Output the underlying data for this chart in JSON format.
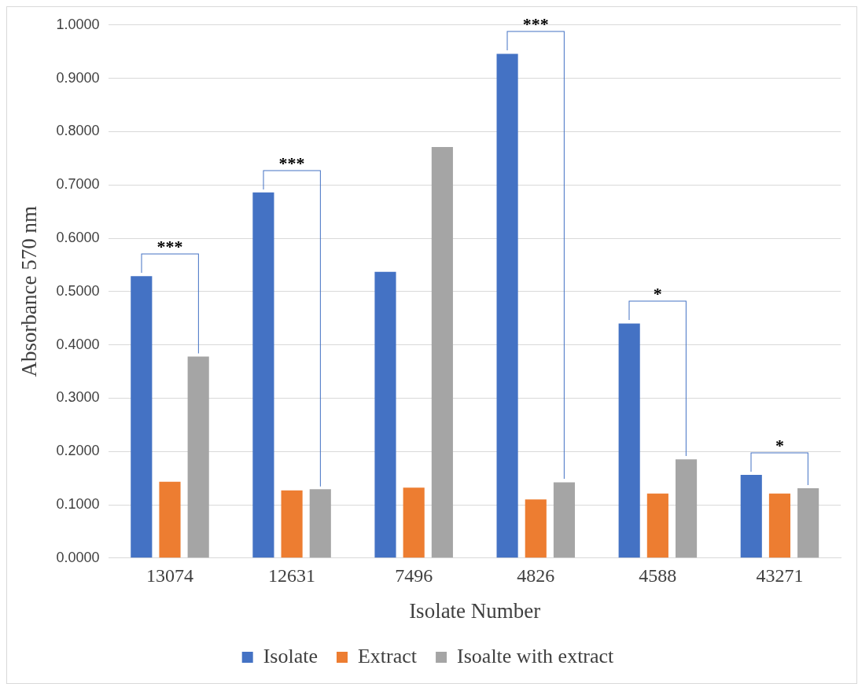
{
  "chart_data": {
    "type": "bar",
    "xlabel": "Isolate Number",
    "ylabel": "Absorbance 570 nm",
    "categories": [
      "13074",
      "12631",
      "7496",
      "4826",
      "4588",
      "43271"
    ],
    "series": [
      {
        "name": "Isolate",
        "color": "#4472c4",
        "values": [
          0.529,
          0.686,
          0.537,
          0.946,
          0.44,
          0.156
        ]
      },
      {
        "name": "Extract",
        "color": "#ed7d31",
        "values": [
          0.143,
          0.127,
          0.132,
          0.11,
          0.121,
          0.121
        ]
      },
      {
        "name": "Isoalte with extract",
        "color": "#a5a5a5",
        "values": [
          0.378,
          0.129,
          0.771,
          0.142,
          0.185,
          0.131
        ]
      }
    ],
    "ylim": [
      0,
      1
    ],
    "yticks": [
      {
        "value": 0,
        "label": "0.0000"
      },
      {
        "value": 0.1,
        "label": "0.1000"
      },
      {
        "value": 0.2,
        "label": "0.2000"
      },
      {
        "value": 0.3,
        "label": "0.3000"
      },
      {
        "value": 0.4,
        "label": "0.4000"
      },
      {
        "value": 0.5,
        "label": "0.5000"
      },
      {
        "value": 0.6,
        "label": "0.6000"
      },
      {
        "value": 0.7,
        "label": "0.7000"
      },
      {
        "value": 0.8,
        "label": "0.8000"
      },
      {
        "value": 0.9,
        "label": "0.9000"
      },
      {
        "value": 1,
        "label": "1.0000"
      }
    ],
    "grid": "y",
    "legend": "bottom",
    "annotations": [
      "***",
      "***",
      "***",
      "*",
      "*"
    ]
  }
}
